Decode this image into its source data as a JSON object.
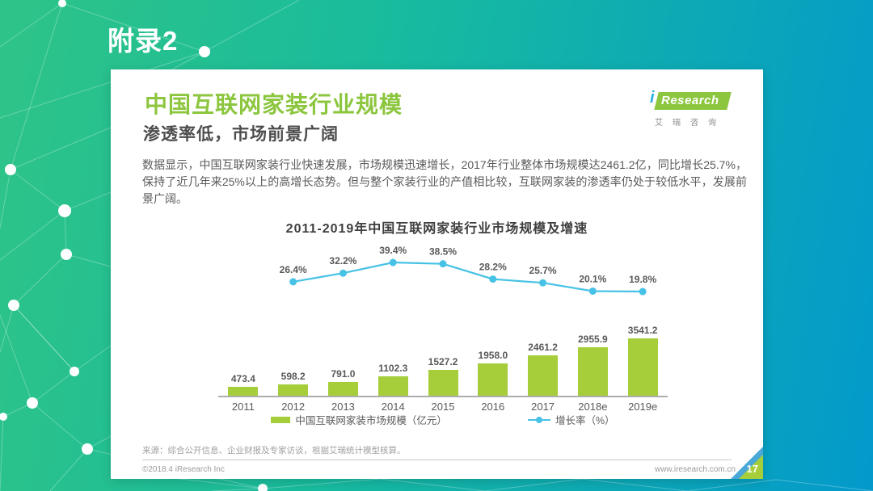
{
  "slide": {
    "appendix_label": "附录2",
    "page_number": "17",
    "footer_left": "©2018.4 iResearch Inc",
    "footer_right": "www.iresearch.com.cn"
  },
  "logo": {
    "i": "i",
    "name": "Research",
    "cn": "艾瑞咨询"
  },
  "card": {
    "title": "中国互联网家装行业规模",
    "subtitle": "渗透率低，市场前景广阔",
    "body": "数据显示，中国互联网家装行业快速发展，市场规模迅速增长，2017年行业整体市场规模达2461.2亿，同比增长25.7%，保持了近几年来25%以上的高增长态势。但与整个家装行业的产值相比较，互联网家装的渗透率仍处于较低水平，发展前景广阔。",
    "source": "来源：综合公开信息、企业财报及专家访谈，根据艾瑞统计模型核算。"
  },
  "chart_data": {
    "type": "bar",
    "subtype": "bar+line-combo",
    "title": "2011-2019年中国互联网家装行业市场规模及增速",
    "categories": [
      "2011",
      "2012",
      "2013",
      "2014",
      "2015",
      "2016",
      "2017",
      "2018e",
      "2019e"
    ],
    "series": [
      {
        "name": "中国互联网家装市场规模（亿元）",
        "type": "bar",
        "color": "#a6ce3b",
        "values": [
          473.4,
          598.2,
          791.0,
          1102.3,
          1527.2,
          1958.0,
          2461.2,
          2955.9,
          3541.2
        ]
      },
      {
        "name": "增长率（%）",
        "type": "line",
        "color": "#47c2e6",
        "values": [
          null,
          26.4,
          32.2,
          39.4,
          38.5,
          28.2,
          25.7,
          20.1,
          19.8
        ]
      }
    ],
    "xlabel": "",
    "ylabel": "",
    "grid": false,
    "value_labels": true,
    "legend_position": "bottom"
  },
  "colors": {
    "title_green": "#8cc63e",
    "bar_green": "#a6ce3b",
    "line_blue": "#47c2e6",
    "corner_blue": "#4aa8d8",
    "background_left": "#2fc487",
    "background_right": "#0399cb"
  }
}
